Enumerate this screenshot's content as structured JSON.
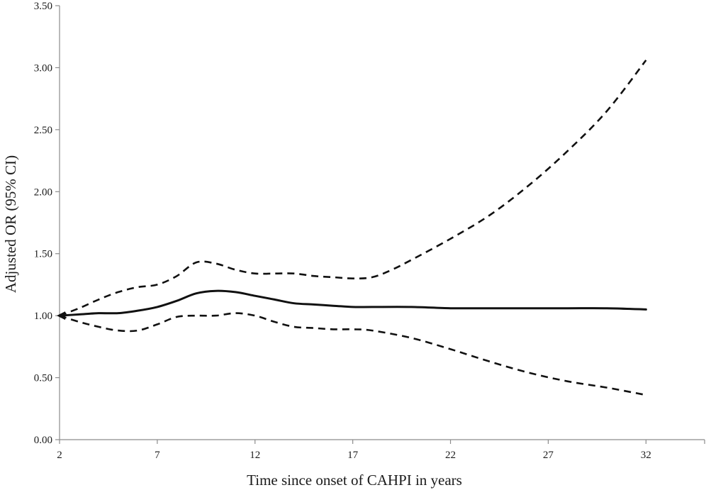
{
  "chart_data": {
    "type": "line",
    "title": "",
    "xlabel": "Time since onset of CAHPI in years",
    "ylabel": "Adjusted OR (95% CI)",
    "xlim": [
      2,
      35
    ],
    "ylim": [
      0,
      3.5
    ],
    "xticks": [
      "2",
      "7",
      "12",
      "17",
      "22",
      "27",
      "32"
    ],
    "yticks": [
      "0.00",
      "0.50",
      "1.00",
      "1.50",
      "2.00",
      "2.50",
      "3.00",
      "3.50"
    ],
    "grid": false,
    "legend": "none",
    "series": [
      {
        "style": "solid",
        "x": [
          2,
          3,
          4,
          5,
          6,
          7,
          8,
          9,
          10,
          11,
          12,
          13,
          14,
          15,
          16,
          17,
          18,
          20,
          22,
          24,
          26,
          28,
          30,
          32
        ],
        "y": [
          1.0,
          1.01,
          1.02,
          1.02,
          1.04,
          1.07,
          1.12,
          1.18,
          1.2,
          1.19,
          1.16,
          1.13,
          1.1,
          1.09,
          1.08,
          1.07,
          1.07,
          1.07,
          1.06,
          1.06,
          1.06,
          1.06,
          1.06,
          1.05
        ]
      },
      {
        "style": "dashed",
        "x": [
          2,
          3,
          4,
          5,
          6,
          7,
          8,
          9,
          10,
          11,
          12,
          13,
          14,
          15,
          16,
          17,
          18,
          19,
          20,
          22,
          24,
          26,
          28,
          30,
          32
        ],
        "y": [
          1.0,
          1.06,
          1.13,
          1.19,
          1.23,
          1.25,
          1.32,
          1.43,
          1.42,
          1.37,
          1.34,
          1.34,
          1.34,
          1.32,
          1.31,
          1.3,
          1.31,
          1.37,
          1.45,
          1.62,
          1.81,
          2.05,
          2.33,
          2.65,
          3.06
        ]
      },
      {
        "style": "dashed",
        "x": [
          2,
          3,
          4,
          5,
          6,
          7,
          8,
          9,
          10,
          11,
          12,
          13,
          14,
          15,
          16,
          17,
          18,
          20,
          22,
          24,
          26,
          28,
          30,
          32
        ],
        "y": [
          1.0,
          0.95,
          0.91,
          0.88,
          0.88,
          0.93,
          0.99,
          1.0,
          1.0,
          1.02,
          1.0,
          0.95,
          0.91,
          0.9,
          0.89,
          0.89,
          0.88,
          0.82,
          0.73,
          0.63,
          0.54,
          0.47,
          0.42,
          0.36
        ]
      }
    ]
  }
}
